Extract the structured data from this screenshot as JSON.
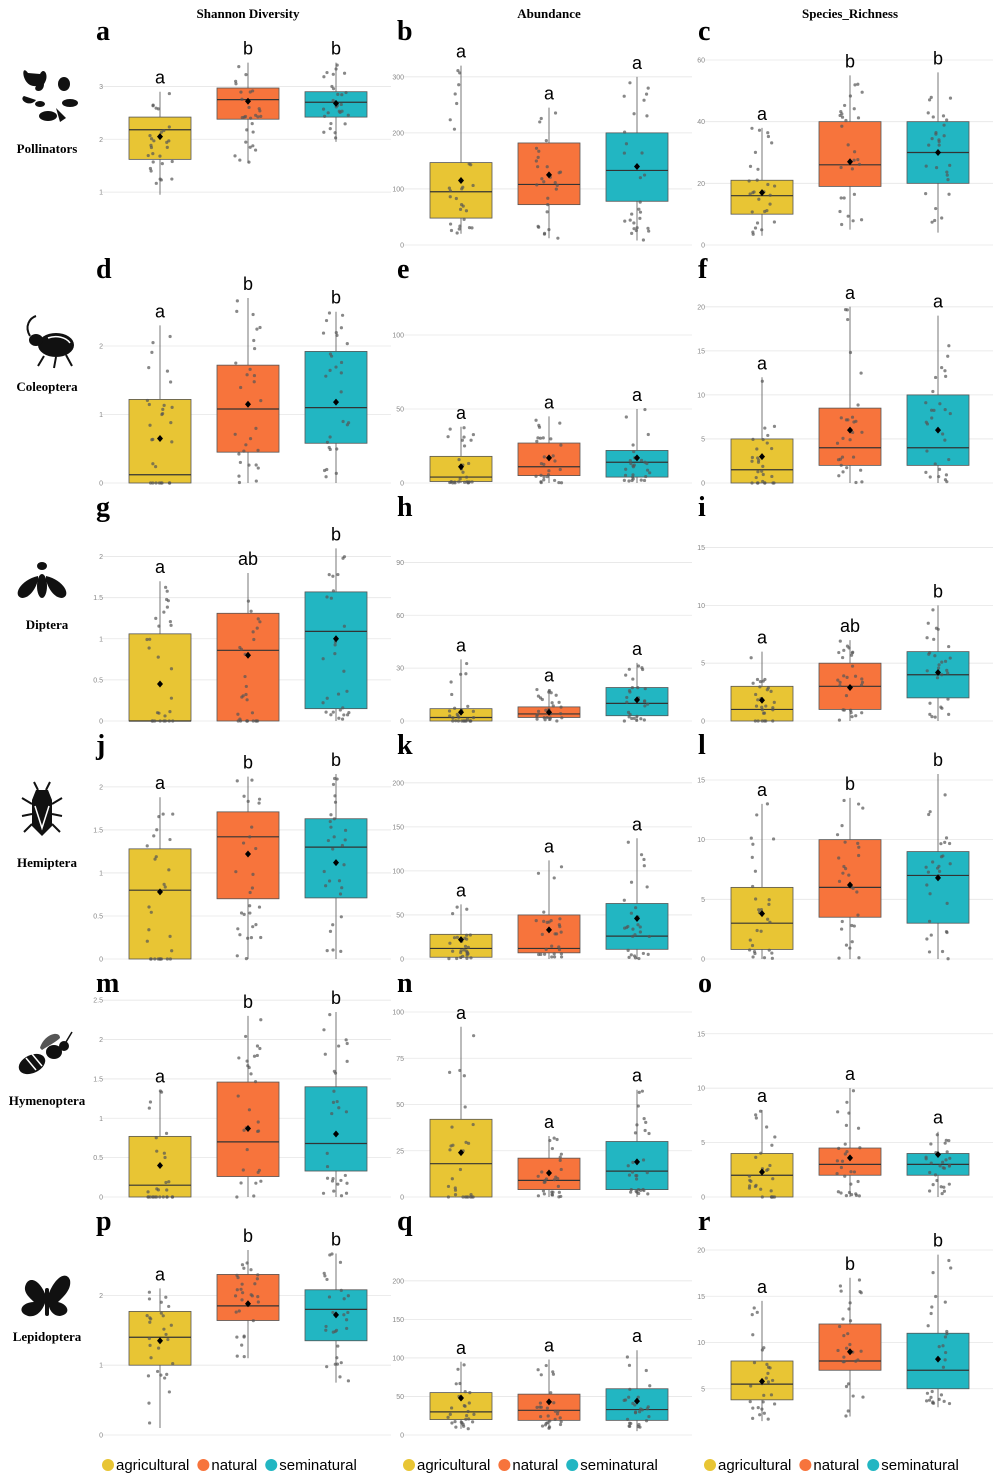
{
  "columns": [
    "Shannon Diversity",
    "Abundance",
    "Species_Richness"
  ],
  "rows": [
    {
      "taxon": "Pollinators",
      "icon": "pollinators-icon"
    },
    {
      "taxon": "Coleoptera",
      "icon": "beetle-icon"
    },
    {
      "taxon": "Diptera",
      "icon": "fly-icon"
    },
    {
      "taxon": "Hemiptera",
      "icon": "bug-icon"
    },
    {
      "taxon": "Hymenoptera",
      "icon": "bee-icon"
    },
    {
      "taxon": "Lepidoptera",
      "icon": "butterfly-icon"
    }
  ],
  "groups": [
    "agricultural",
    "natural",
    "seminatural"
  ],
  "colors": {
    "agricultural": "#E8C534",
    "natural": "#F7743C",
    "seminatural": "#22B6C2"
  },
  "legend": {
    "items": [
      "agricultural",
      "natural",
      "seminatural"
    ],
    "placement": "bottom"
  },
  "chart_data": [
    {
      "type": "box",
      "label": "a",
      "taxon": "Pollinators",
      "metric": "Shannon Diversity",
      "ylim": [
        0,
        3.5
      ],
      "ticks": [
        1,
        2,
        3
      ],
      "boxes": [
        {
          "group": "agricultural",
          "q1": 1.62,
          "median": 2.18,
          "q3": 2.42,
          "min": 0.95,
          "max": 2.9,
          "mean": 2.05,
          "sig": "a"
        },
        {
          "group": "natural",
          "q1": 2.38,
          "median": 2.75,
          "q3": 2.97,
          "min": 1.55,
          "max": 3.45,
          "mean": 2.72,
          "sig": "b"
        },
        {
          "group": "seminatural",
          "q1": 2.42,
          "median": 2.7,
          "q3": 2.9,
          "min": 1.95,
          "max": 3.45,
          "mean": 2.68,
          "sig": "b"
        }
      ]
    },
    {
      "type": "box",
      "label": "b",
      "taxon": "Pollinators",
      "metric": "Abundance",
      "ylim": [
        0,
        330
      ],
      "ticks": [
        0,
        100,
        200,
        300
      ],
      "boxes": [
        {
          "group": "agricultural",
          "q1": 48,
          "median": 95,
          "q3": 147,
          "min": 20,
          "max": 320,
          "mean": 115,
          "sig": "a"
        },
        {
          "group": "natural",
          "q1": 72,
          "median": 108,
          "q3": 182,
          "min": 12,
          "max": 245,
          "mean": 125,
          "sig": "a"
        },
        {
          "group": "seminatural",
          "q1": 78,
          "median": 133,
          "q3": 200,
          "min": 8,
          "max": 300,
          "mean": 140,
          "sig": "a"
        }
      ]
    },
    {
      "type": "box",
      "label": "c",
      "taxon": "Pollinators",
      "metric": "Species_Richness",
      "ylim": [
        0,
        60
      ],
      "ticks": [
        0,
        20,
        40,
        60
      ],
      "boxes": [
        {
          "group": "agricultural",
          "q1": 10,
          "median": 16,
          "q3": 21,
          "min": 3,
          "max": 38,
          "mean": 17,
          "sig": "a"
        },
        {
          "group": "natural",
          "q1": 19,
          "median": 26,
          "q3": 40,
          "min": 5,
          "max": 55,
          "mean": 27,
          "sig": "b"
        },
        {
          "group": "seminatural",
          "q1": 20,
          "median": 30,
          "q3": 40,
          "min": 4,
          "max": 56,
          "mean": 30,
          "sig": "b"
        }
      ]
    },
    {
      "type": "box",
      "label": "d",
      "taxon": "Coleoptera",
      "metric": "Shannon Diversity",
      "ylim": [
        0,
        2.7
      ],
      "ticks": [
        0,
        1,
        2
      ],
      "boxes": [
        {
          "group": "agricultural",
          "q1": 0.0,
          "median": 0.12,
          "q3": 1.22,
          "min": 0,
          "max": 2.3,
          "mean": 0.65,
          "sig": "a"
        },
        {
          "group": "natural",
          "q1": 0.45,
          "median": 1.08,
          "q3": 1.72,
          "min": 0,
          "max": 2.7,
          "mean": 1.15,
          "sig": "b"
        },
        {
          "group": "seminatural",
          "q1": 0.58,
          "median": 1.1,
          "q3": 1.92,
          "min": 0,
          "max": 2.5,
          "mean": 1.18,
          "sig": "b"
        }
      ]
    },
    {
      "type": "box",
      "label": "e",
      "taxon": "Coleoptera",
      "metric": "Abundance",
      "ylim": [
        0,
        125
      ],
      "ticks": [
        0,
        50,
        100
      ],
      "boxes": [
        {
          "group": "agricultural",
          "q1": 1,
          "median": 4,
          "q3": 18,
          "min": 0,
          "max": 38,
          "mean": 11,
          "sig": "a"
        },
        {
          "group": "natural",
          "q1": 5,
          "median": 11,
          "q3": 27,
          "min": 0,
          "max": 45,
          "mean": 17,
          "sig": "a"
        },
        {
          "group": "seminatural",
          "q1": 4,
          "median": 14,
          "q3": 22,
          "min": 0,
          "max": 50,
          "mean": 17,
          "sig": "a"
        }
      ]
    },
    {
      "type": "box",
      "label": "f",
      "taxon": "Coleoptera",
      "metric": "Species_Richness",
      "ylim": [
        0,
        21
      ],
      "ticks": [
        0,
        5,
        10,
        15,
        20
      ],
      "boxes": [
        {
          "group": "agricultural",
          "q1": 0,
          "median": 1.5,
          "q3": 5,
          "min": 0,
          "max": 12,
          "mean": 3,
          "sig": "a"
        },
        {
          "group": "natural",
          "q1": 2,
          "median": 4,
          "q3": 8.5,
          "min": 0,
          "max": 20,
          "mean": 6,
          "sig": "a"
        },
        {
          "group": "seminatural",
          "q1": 2,
          "median": 4,
          "q3": 10,
          "min": 0,
          "max": 19,
          "mean": 6,
          "sig": "a"
        }
      ]
    },
    {
      "type": "box",
      "label": "g",
      "taxon": "Diptera",
      "metric": "Shannon Diversity",
      "ylim": [
        0,
        2.25
      ],
      "ticks": [
        0,
        0.5,
        1,
        1.5,
        2
      ],
      "boxes": [
        {
          "group": "agricultural",
          "q1": 0,
          "median": 0,
          "q3": 1.06,
          "min": 0,
          "max": 1.7,
          "mean": 0.45,
          "sig": "a"
        },
        {
          "group": "natural",
          "q1": 0,
          "median": 0.86,
          "q3": 1.31,
          "min": 0,
          "max": 1.8,
          "mean": 0.8,
          "sig": "ab"
        },
        {
          "group": "seminatural",
          "q1": 0.15,
          "median": 1.09,
          "q3": 1.57,
          "min": 0,
          "max": 2.1,
          "mean": 1.0,
          "sig": "b"
        }
      ]
    },
    {
      "type": "box",
      "label": "h",
      "taxon": "Diptera",
      "metric": "Abundance",
      "ylim": [
        0,
        105
      ],
      "ticks": [
        0,
        30,
        60,
        90
      ],
      "boxes": [
        {
          "group": "agricultural",
          "q1": 0,
          "median": 2,
          "q3": 7,
          "min": 0,
          "max": 35,
          "mean": 5,
          "sig": "a"
        },
        {
          "group": "natural",
          "q1": 2,
          "median": 4,
          "q3": 8,
          "min": 0,
          "max": 18,
          "mean": 5,
          "sig": "a"
        },
        {
          "group": "seminatural",
          "q1": 3,
          "median": 10,
          "q3": 19,
          "min": 0,
          "max": 33,
          "mean": 12,
          "sig": "a"
        }
      ]
    },
    {
      "type": "box",
      "label": "i",
      "taxon": "Diptera",
      "metric": "Species_Richness",
      "ylim": [
        0,
        16
      ],
      "ticks": [
        0,
        5,
        10,
        15
      ],
      "boxes": [
        {
          "group": "agricultural",
          "q1": 0,
          "median": 1,
          "q3": 3,
          "min": 0,
          "max": 6,
          "mean": 1.8,
          "sig": "a"
        },
        {
          "group": "natural",
          "q1": 1,
          "median": 3,
          "q3": 5,
          "min": 0,
          "max": 7,
          "mean": 2.9,
          "sig": "ab"
        },
        {
          "group": "seminatural",
          "q1": 2,
          "median": 4,
          "q3": 6,
          "min": 0,
          "max": 10,
          "mean": 4.2,
          "sig": "b"
        }
      ]
    },
    {
      "type": "box",
      "label": "j",
      "taxon": "Hemiptera",
      "metric": "Shannon Diversity",
      "ylim": [
        0,
        2.15
      ],
      "ticks": [
        0,
        0.5,
        1,
        1.5,
        2
      ],
      "boxes": [
        {
          "group": "agricultural",
          "q1": 0,
          "median": 0.8,
          "q3": 1.28,
          "min": 0,
          "max": 1.88,
          "mean": 0.78,
          "sig": "a"
        },
        {
          "group": "natural",
          "q1": 0.7,
          "median": 1.42,
          "q3": 1.71,
          "min": 0,
          "max": 2.12,
          "mean": 1.22,
          "sig": "b"
        },
        {
          "group": "seminatural",
          "q1": 0.71,
          "median": 1.3,
          "q3": 1.63,
          "min": 0,
          "max": 2.15,
          "mean": 1.12,
          "sig": "b"
        }
      ]
    },
    {
      "type": "box",
      "label": "k",
      "taxon": "Hemiptera",
      "metric": "Abundance",
      "ylim": [
        0,
        210
      ],
      "ticks": [
        0,
        50,
        100,
        150,
        200
      ],
      "boxes": [
        {
          "group": "agricultural",
          "q1": 2,
          "median": 12,
          "q3": 28,
          "min": 0,
          "max": 62,
          "mean": 22,
          "sig": "a"
        },
        {
          "group": "natural",
          "q1": 7,
          "median": 12,
          "q3": 50,
          "min": 0,
          "max": 112,
          "mean": 33,
          "sig": "a"
        },
        {
          "group": "seminatural",
          "q1": 11,
          "median": 26,
          "q3": 63,
          "min": 0,
          "max": 137,
          "mean": 46,
          "sig": "a"
        }
      ]
    },
    {
      "type": "box",
      "label": "l",
      "taxon": "Hemiptera",
      "metric": "Species_Richness",
      "ylim": [
        0,
        15.5
      ],
      "ticks": [
        0,
        5,
        10,
        15
      ],
      "boxes": [
        {
          "group": "agricultural",
          "q1": 0.8,
          "median": 3,
          "q3": 6,
          "min": 0,
          "max": 13,
          "mean": 3.8,
          "sig": "a"
        },
        {
          "group": "natural",
          "q1": 3.5,
          "median": 6,
          "q3": 10,
          "min": 0,
          "max": 13.5,
          "mean": 6.2,
          "sig": "b"
        },
        {
          "group": "seminatural",
          "q1": 3,
          "median": 7,
          "q3": 9,
          "min": 0,
          "max": 15.5,
          "mean": 6.8,
          "sig": "b"
        }
      ]
    },
    {
      "type": "box",
      "label": "m",
      "taxon": "Hymenoptera",
      "metric": "Shannon Diversity",
      "ylim": [
        0,
        2.35
      ],
      "ticks": [
        0,
        0.5,
        1,
        1.5,
        2,
        2.5
      ],
      "boxes": [
        {
          "group": "agricultural",
          "q1": 0,
          "median": 0.15,
          "q3": 0.77,
          "min": 0,
          "max": 1.35,
          "mean": 0.4,
          "sig": "a"
        },
        {
          "group": "natural",
          "q1": 0.26,
          "median": 0.7,
          "q3": 1.46,
          "min": 0,
          "max": 2.3,
          "mean": 0.87,
          "sig": "b"
        },
        {
          "group": "seminatural",
          "q1": 0.33,
          "median": 0.68,
          "q3": 1.4,
          "min": 0,
          "max": 2.35,
          "mean": 0.8,
          "sig": "b"
        }
      ]
    },
    {
      "type": "box",
      "label": "n",
      "taxon": "Hymenoptera",
      "metric": "Abundance",
      "ylim": [
        0,
        100
      ],
      "ticks": [
        0,
        25,
        50,
        75,
        100
      ],
      "boxes": [
        {
          "group": "agricultural",
          "q1": 0,
          "median": 18,
          "q3": 42,
          "min": 0,
          "max": 92,
          "mean": 24,
          "sig": "a"
        },
        {
          "group": "natural",
          "q1": 4,
          "median": 9,
          "q3": 21,
          "min": 0,
          "max": 33,
          "mean": 13,
          "sig": "a"
        },
        {
          "group": "seminatural",
          "q1": 4,
          "median": 14,
          "q3": 30,
          "min": 0,
          "max": 58,
          "mean": 19,
          "sig": "a"
        }
      ]
    },
    {
      "type": "box",
      "label": "o",
      "taxon": "Hymenoptera",
      "metric": "Species_Richness",
      "ylim": [
        0,
        17
      ],
      "ticks": [
        0,
        5,
        10,
        15
      ],
      "boxes": [
        {
          "group": "agricultural",
          "q1": 0,
          "median": 2,
          "q3": 4,
          "min": 0,
          "max": 8,
          "mean": 2.3,
          "sig": "a"
        },
        {
          "group": "natural",
          "q1": 2,
          "median": 3,
          "q3": 4.5,
          "min": 0,
          "max": 10,
          "mean": 3.6,
          "sig": "a"
        },
        {
          "group": "seminatural",
          "q1": 2,
          "median": 3,
          "q3": 4,
          "min": 0,
          "max": 6,
          "mean": 3.9,
          "sig": "a"
        }
      ]
    },
    {
      "type": "box",
      "label": "p",
      "taxon": "Lepidoptera",
      "metric": "Shannon Diversity",
      "ylim": [
        0,
        2.65
      ],
      "ticks": [
        0,
        1,
        2
      ],
      "boxes": [
        {
          "group": "agricultural",
          "q1": 1.0,
          "median": 1.4,
          "q3": 1.77,
          "min": 0.1,
          "max": 2.1,
          "mean": 1.35,
          "sig": "a"
        },
        {
          "group": "natural",
          "q1": 1.64,
          "median": 1.85,
          "q3": 2.3,
          "min": 1.1,
          "max": 2.65,
          "mean": 1.88,
          "sig": "b"
        },
        {
          "group": "seminatural",
          "q1": 1.35,
          "median": 1.8,
          "q3": 2.08,
          "min": 0.75,
          "max": 2.6,
          "mean": 1.72,
          "sig": "b"
        }
      ]
    },
    {
      "type": "box",
      "label": "q",
      "taxon": "Lepidoptera",
      "metric": "Abundance",
      "ylim": [
        0,
        240
      ],
      "ticks": [
        0,
        50,
        100,
        150,
        200
      ],
      "boxes": [
        {
          "group": "agricultural",
          "q1": 20,
          "median": 30,
          "q3": 55,
          "min": 8,
          "max": 95,
          "mean": 48,
          "sig": "a"
        },
        {
          "group": "natural",
          "q1": 19,
          "median": 32,
          "q3": 53,
          "min": 8,
          "max": 98,
          "mean": 43,
          "sig": "a"
        },
        {
          "group": "seminatural",
          "q1": 19,
          "median": 33,
          "q3": 60,
          "min": 5,
          "max": 110,
          "mean": 44,
          "sig": "a"
        }
      ]
    },
    {
      "type": "box",
      "label": "r",
      "taxon": "Lepidoptera",
      "metric": "Species_Richness",
      "ylim": [
        0,
        20
      ],
      "ticks": [
        5,
        10,
        15,
        20
      ],
      "boxes": [
        {
          "group": "agricultural",
          "q1": 3.8,
          "median": 5.5,
          "q3": 8,
          "min": 1.5,
          "max": 14.5,
          "mean": 5.8,
          "sig": "a"
        },
        {
          "group": "natural",
          "q1": 7,
          "median": 8,
          "q3": 12,
          "min": 2,
          "max": 17,
          "mean": 9,
          "sig": "b"
        },
        {
          "group": "seminatural",
          "q1": 5,
          "median": 7,
          "q3": 11,
          "min": 3,
          "max": 19.5,
          "mean": 8.2,
          "sig": "b"
        }
      ]
    }
  ]
}
